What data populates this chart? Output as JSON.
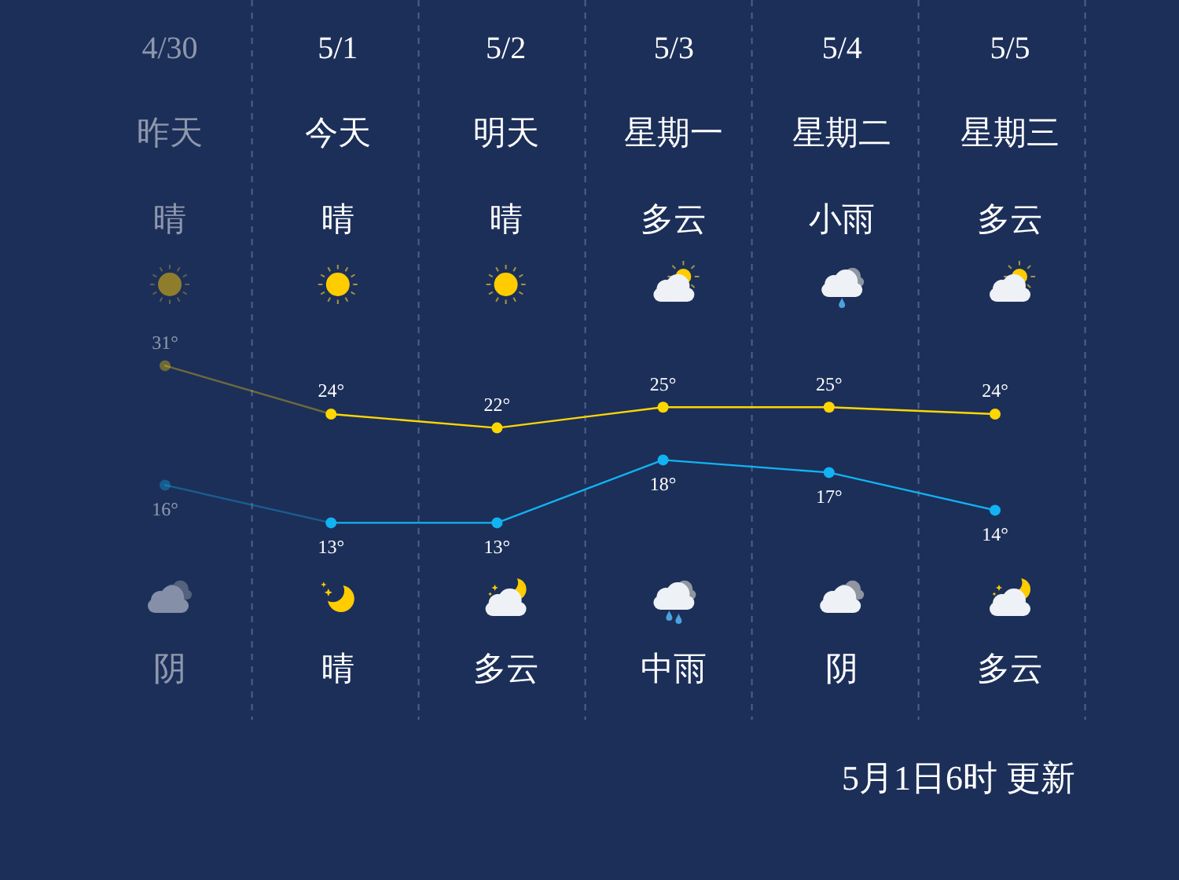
{
  "chart_data": [
    {
      "type": "line",
      "categories": [
        "4/30",
        "5/1",
        "5/2",
        "5/3",
        "5/4",
        "5/5"
      ],
      "series": [
        {
          "color": "#ffd700",
          "values": [
            31,
            24,
            22,
            25,
            25,
            24
          ],
          "value_labels": [
            "31°",
            "24°",
            "22°",
            "25°",
            "25°",
            "24°"
          ]
        }
      ],
      "marker": "circle",
      "line_style": "solid",
      "grid": "x",
      "tick_labels": "x",
      "annotations": [
        "昨天",
        "今天",
        "明天",
        "星期一",
        "星期二",
        "星期三",
        "晴",
        "晴",
        "晴",
        "多云",
        "小雨",
        "多云",
        "阴",
        "晴",
        "多云",
        "中雨",
        "阴",
        "多云",
        "5月1日6时 更新"
      ]
    },
    {
      "type": "line",
      "categories": [
        null,
        null,
        null,
        null,
        null,
        null
      ],
      "series": [
        {
          "color": "#12b3f2",
          "values": [
            16,
            13,
            13,
            18,
            17,
            14
          ],
          "value_labels": [
            "16°",
            "13°",
            "13°",
            "18°",
            "17°",
            "14°"
          ]
        }
      ],
      "marker": "circle",
      "line_style": "solid",
      "grid": "x"
    }
  ]
}
